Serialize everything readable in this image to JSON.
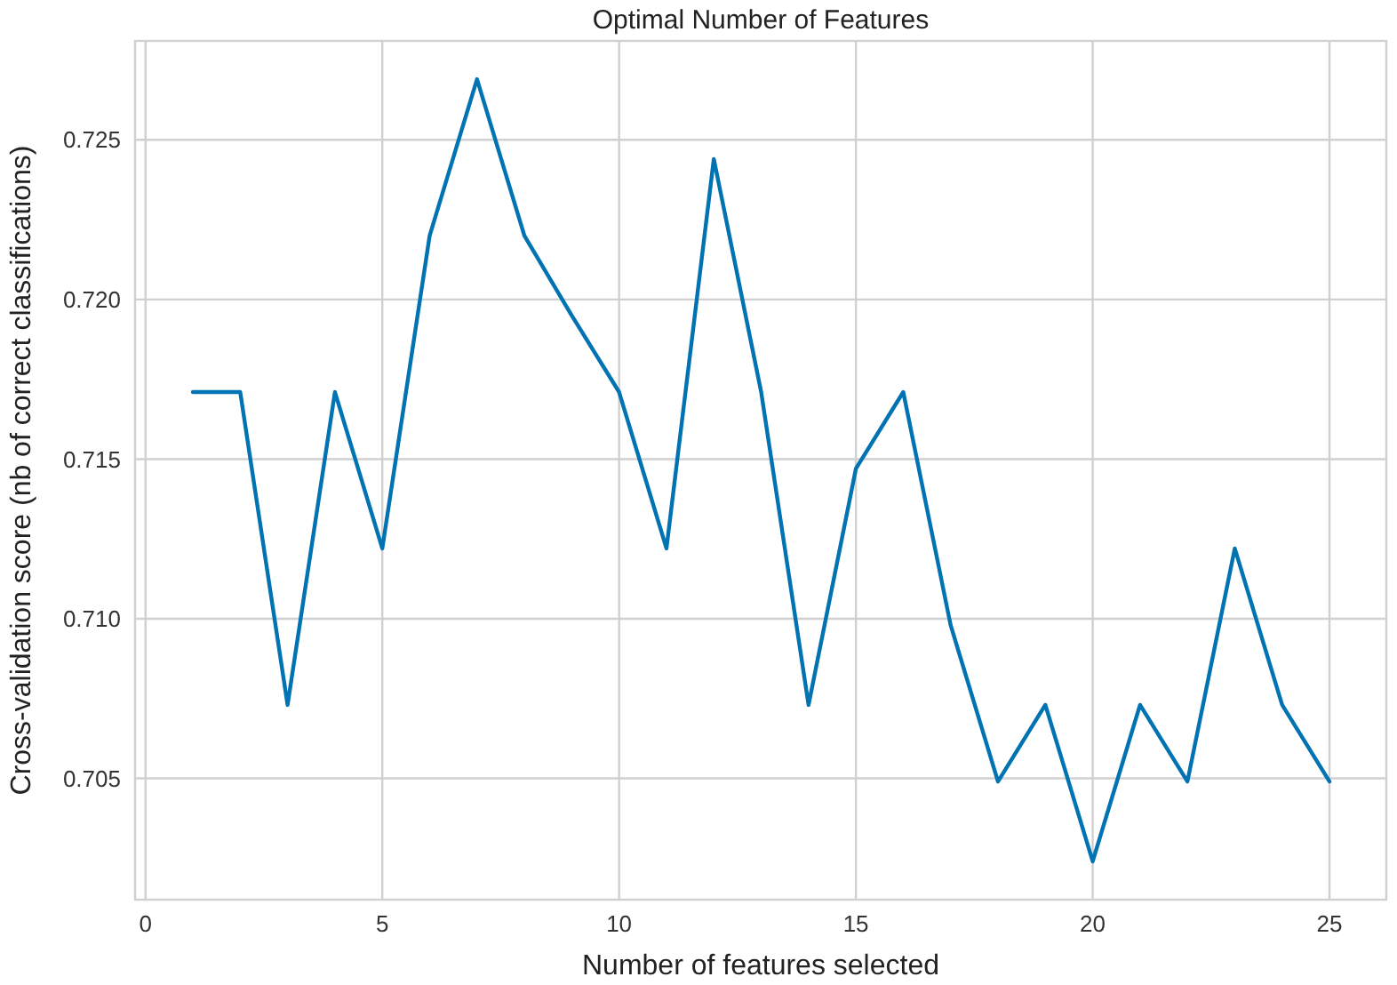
{
  "chart_data": {
    "type": "line",
    "title": "Optimal Number of Features",
    "xlabel": "Number of features selected",
    "ylabel": "Cross-validation score (nb of correct classifications)",
    "x": [
      1,
      2,
      3,
      4,
      5,
      6,
      7,
      8,
      9,
      10,
      11,
      12,
      13,
      14,
      15,
      16,
      17,
      18,
      19,
      20,
      21,
      22,
      23,
      24,
      25
    ],
    "series": [
      {
        "color": "#0173b2",
        "values": [
          0.7171,
          0.7171,
          0.7073,
          0.7171,
          0.7122,
          0.722,
          0.7269,
          0.722,
          0.7195,
          0.7171,
          0.7122,
          0.7244,
          0.7171,
          0.7073,
          0.7147,
          0.7171,
          0.7098,
          0.7049,
          0.7073,
          0.7024,
          0.7073,
          0.7049,
          0.7122,
          0.7073,
          0.7049
        ]
      }
    ],
    "xlim": [
      -0.22,
      26.2
    ],
    "xticks": [
      0,
      5,
      10,
      15,
      20,
      25
    ],
    "ylim": [
      0.7012,
      0.7281
    ],
    "yticks": [
      {
        "value": 0.705,
        "label": "0.705"
      },
      {
        "value": 0.71,
        "label": "0.710"
      },
      {
        "value": 0.715,
        "label": "0.715"
      },
      {
        "value": 0.72,
        "label": "0.720"
      },
      {
        "value": 0.725,
        "label": "0.725"
      }
    ],
    "grid": true,
    "line_style": "solid",
    "marker": "none"
  }
}
